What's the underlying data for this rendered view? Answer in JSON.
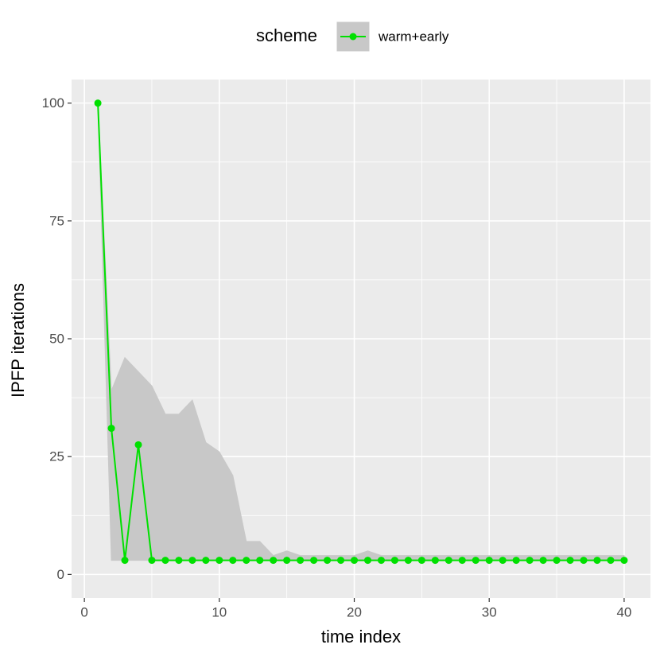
{
  "chart_data": {
    "type": "line",
    "xlabel": "time index",
    "ylabel": "IPFP iterations",
    "legend_title": "scheme",
    "legend_position": "top",
    "x": [
      1,
      2,
      3,
      4,
      5,
      6,
      7,
      8,
      9,
      10,
      11,
      12,
      13,
      14,
      15,
      16,
      17,
      18,
      19,
      20,
      21,
      22,
      23,
      24,
      25,
      26,
      27,
      28,
      29,
      30,
      31,
      32,
      33,
      34,
      35,
      36,
      37,
      38,
      39,
      40
    ],
    "series": [
      {
        "name": "warm+early",
        "color": "#00e000",
        "band_color": "#c8c8c8",
        "values": [
          100,
          31,
          3,
          27.5,
          3,
          3,
          3,
          3,
          3,
          3,
          3,
          3,
          3,
          3,
          3,
          3,
          3,
          3,
          3,
          3,
          3,
          3,
          3,
          3,
          3,
          3,
          3,
          3,
          3,
          3,
          3,
          3,
          3,
          3,
          3,
          3,
          3,
          3,
          3,
          3
        ],
        "upper": [
          100,
          39,
          46,
          43,
          40,
          34,
          34,
          37,
          28,
          26,
          21,
          7,
          7,
          4,
          5,
          4,
          4,
          4,
          4,
          4,
          5,
          4,
          4,
          4,
          4,
          4,
          4,
          4,
          4,
          4,
          4,
          4,
          4,
          4,
          4,
          4,
          4,
          4,
          4,
          4
        ],
        "lower": [
          100,
          3,
          3,
          3,
          3,
          3,
          3,
          3,
          3,
          3,
          3,
          3,
          3,
          3,
          3,
          3,
          3,
          3,
          3,
          3,
          3,
          3,
          3,
          3,
          3,
          3,
          3,
          3,
          3,
          3,
          3,
          3,
          3,
          3,
          3,
          3,
          3,
          3,
          3,
          3
        ]
      }
    ],
    "xlim": [
      -0.95,
      41.95
    ],
    "ylim": [
      -5,
      105
    ],
    "xticks": [
      0,
      10,
      20,
      30,
      40
    ],
    "yticks": [
      0,
      25,
      50,
      75,
      100
    ],
    "minor_xticks": [
      5,
      15,
      25,
      35
    ],
    "minor_yticks": [
      12.5,
      37.5,
      62.5,
      87.5
    ],
    "grid": true
  }
}
